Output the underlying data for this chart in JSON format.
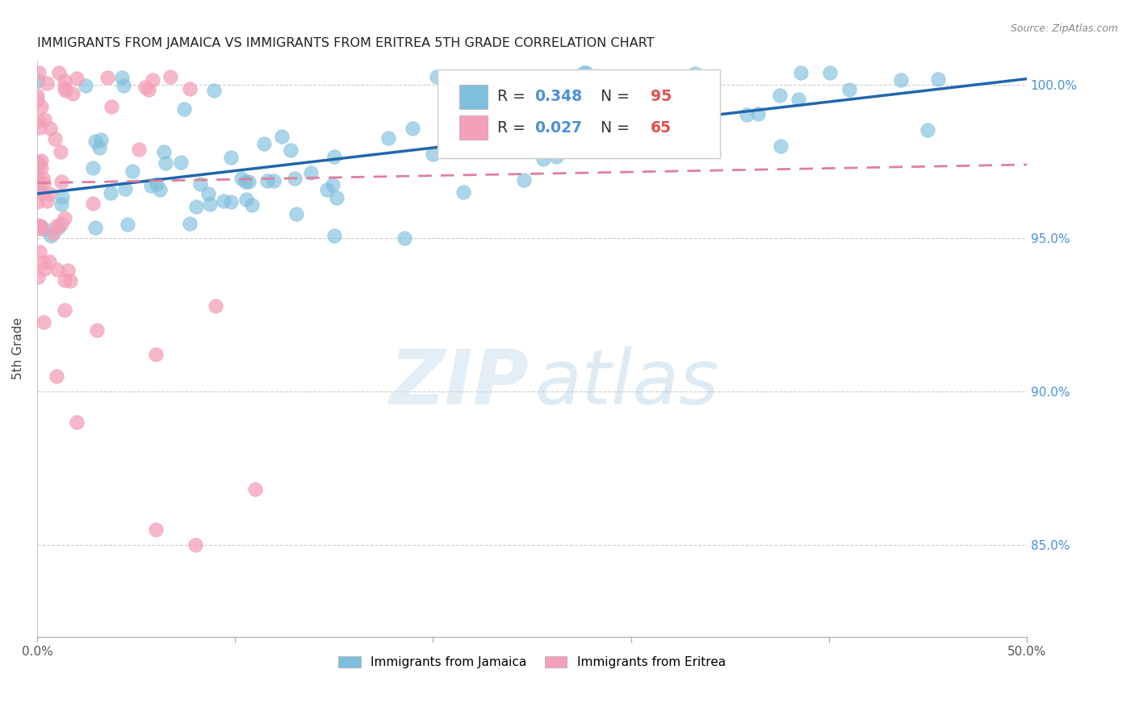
{
  "title": "IMMIGRANTS FROM JAMAICA VS IMMIGRANTS FROM ERITREA 5TH GRADE CORRELATION CHART",
  "source": "Source: ZipAtlas.com",
  "ylabel": "5th Grade",
  "x_min": 0.0,
  "x_max": 0.5,
  "y_min": 0.82,
  "y_max": 1.008,
  "x_ticks": [
    0.0,
    0.1,
    0.2,
    0.3,
    0.4,
    0.5
  ],
  "x_tick_labels": [
    "0.0%",
    "",
    "",
    "",
    "",
    "50.0%"
  ],
  "y_ticks": [
    0.85,
    0.9,
    0.95,
    1.0
  ],
  "y_tick_labels_right": [
    "85.0%",
    "90.0%",
    "95.0%",
    "100.0%"
  ],
  "jamaica_color": "#7fbfdd",
  "eritrea_color": "#f4a0b8",
  "jamaica_line_color": "#2166ac",
  "eritrea_line_color": "#e08098",
  "legend_r_jamaica": "0.348",
  "legend_n_jamaica": "95",
  "legend_r_eritrea": "0.027",
  "legend_n_eritrea": "65",
  "legend_label_jamaica": "Immigrants from Jamaica",
  "legend_label_eritrea": "Immigrants from Eritrea",
  "jamaica_N": 95,
  "eritrea_N": 65,
  "watermark_zip": "ZIP",
  "watermark_atlas": "atlas",
  "background_color": "#ffffff",
  "grid_color": "#cccccc",
  "jamaica_line_x0": 0.0,
  "jamaica_line_y0": 0.9645,
  "jamaica_line_x1": 0.5,
  "jamaica_line_y1": 1.002,
  "eritrea_line_x0": 0.0,
  "eritrea_line_y0": 0.968,
  "eritrea_line_x1": 0.5,
  "eritrea_line_y1": 0.974
}
